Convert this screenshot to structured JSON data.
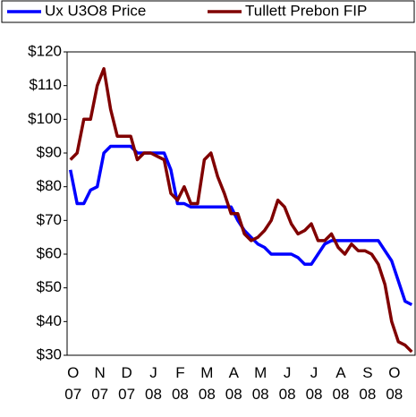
{
  "chart_data": {
    "type": "line",
    "categories": [
      "O 07",
      null,
      null,
      null,
      "N 07",
      null,
      null,
      null,
      "D 07",
      null,
      null,
      null,
      "J 08",
      null,
      null,
      null,
      "F 08",
      null,
      null,
      null,
      "M 08",
      null,
      null,
      null,
      "A 08",
      null,
      null,
      null,
      "M 08",
      null,
      null,
      null,
      "J 08",
      null,
      null,
      null,
      "J 08",
      null,
      null,
      null,
      "A 08",
      null,
      null,
      null,
      "S 08",
      null,
      null,
      null,
      "O 08",
      null,
      null,
      null
    ],
    "series": [
      {
        "name": "Ux U3O8 Price",
        "color": "#0000ff",
        "values": [
          85,
          75,
          75,
          79,
          80,
          90,
          92,
          92,
          92,
          92,
          90,
          90,
          90,
          90,
          90,
          85,
          75,
          75,
          74,
          74,
          74,
          74,
          74,
          74,
          74,
          70,
          67,
          65,
          63,
          62,
          60,
          60,
          60,
          60,
          59,
          57,
          57,
          60,
          63,
          64,
          64,
          64,
          64,
          64,
          64,
          64,
          64,
          61,
          58,
          52,
          46,
          45
        ]
      },
      {
        "name": "Tullett Prebon FIP",
        "color": "#800000",
        "values": [
          88,
          90,
          100,
          100,
          110,
          115,
          103,
          95,
          95,
          95,
          88,
          90,
          90,
          89,
          88,
          78,
          76,
          80,
          75,
          75,
          88,
          90,
          83,
          78,
          72,
          72,
          66,
          64,
          65,
          67,
          70,
          76,
          74,
          69,
          66,
          67,
          69,
          64,
          64,
          66,
          62,
          60,
          63,
          61,
          61,
          60,
          57,
          51,
          40,
          34,
          33,
          31
        ]
      }
    ],
    "ylim": [
      30,
      120
    ],
    "yticks": [
      {
        "value": 30,
        "label": "$30"
      },
      {
        "value": 40,
        "label": "$40"
      },
      {
        "value": 50,
        "label": "$50"
      },
      {
        "value": 60,
        "label": "$60"
      },
      {
        "value": 70,
        "label": "$70"
      },
      {
        "value": 80,
        "label": "$80"
      },
      {
        "value": 90,
        "label": "$90"
      },
      {
        "value": 100,
        "label": "$100"
      },
      {
        "value": 110,
        "label": "$110"
      },
      {
        "value": 120,
        "label": "$120"
      }
    ],
    "grid": false,
    "legend": "top"
  }
}
